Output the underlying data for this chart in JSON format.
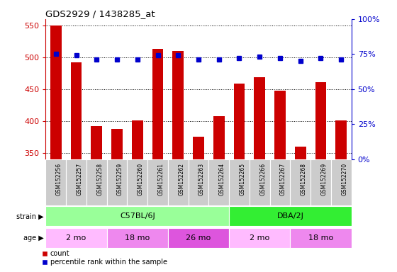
{
  "title": "GDS2929 / 1438285_at",
  "samples": [
    "GSM152256",
    "GSM152257",
    "GSM152258",
    "GSM152259",
    "GSM152260",
    "GSM152261",
    "GSM152262",
    "GSM152263",
    "GSM152264",
    "GSM152265",
    "GSM152266",
    "GSM152267",
    "GSM152268",
    "GSM152269",
    "GSM152270"
  ],
  "counts": [
    550,
    492,
    392,
    387,
    401,
    513,
    510,
    375,
    407,
    459,
    469,
    447,
    360,
    461,
    401
  ],
  "percentile": [
    75,
    74,
    71,
    71,
    71,
    74,
    74,
    71,
    71,
    72,
    73,
    72,
    70,
    72,
    71
  ],
  "ylim_left": [
    340,
    560
  ],
  "ylim_right": [
    0,
    100
  ],
  "yticks_left": [
    350,
    400,
    450,
    500,
    550
  ],
  "yticks_right": [
    0,
    25,
    50,
    75,
    100
  ],
  "bar_color": "#cc0000",
  "dot_color": "#0000cc",
  "strain_groups": [
    {
      "label": "C57BL/6J",
      "start": 0,
      "end": 9,
      "color": "#99ff99"
    },
    {
      "label": "DBA/2J",
      "start": 9,
      "end": 15,
      "color": "#33ee33"
    }
  ],
  "age_groups": [
    {
      "label": "2 mo",
      "start": 0,
      "end": 3,
      "color": "#ffbbff"
    },
    {
      "label": "18 mo",
      "start": 3,
      "end": 6,
      "color": "#ee88ee"
    },
    {
      "label": "26 mo",
      "start": 6,
      "end": 9,
      "color": "#dd55dd"
    },
    {
      "label": "2 mo",
      "start": 9,
      "end": 12,
      "color": "#ffbbff"
    },
    {
      "label": "18 mo",
      "start": 12,
      "end": 15,
      "color": "#ee88ee"
    }
  ],
  "left_axis_color": "#cc0000",
  "right_axis_color": "#0000cc",
  "xtick_bg_color": "#cccccc"
}
